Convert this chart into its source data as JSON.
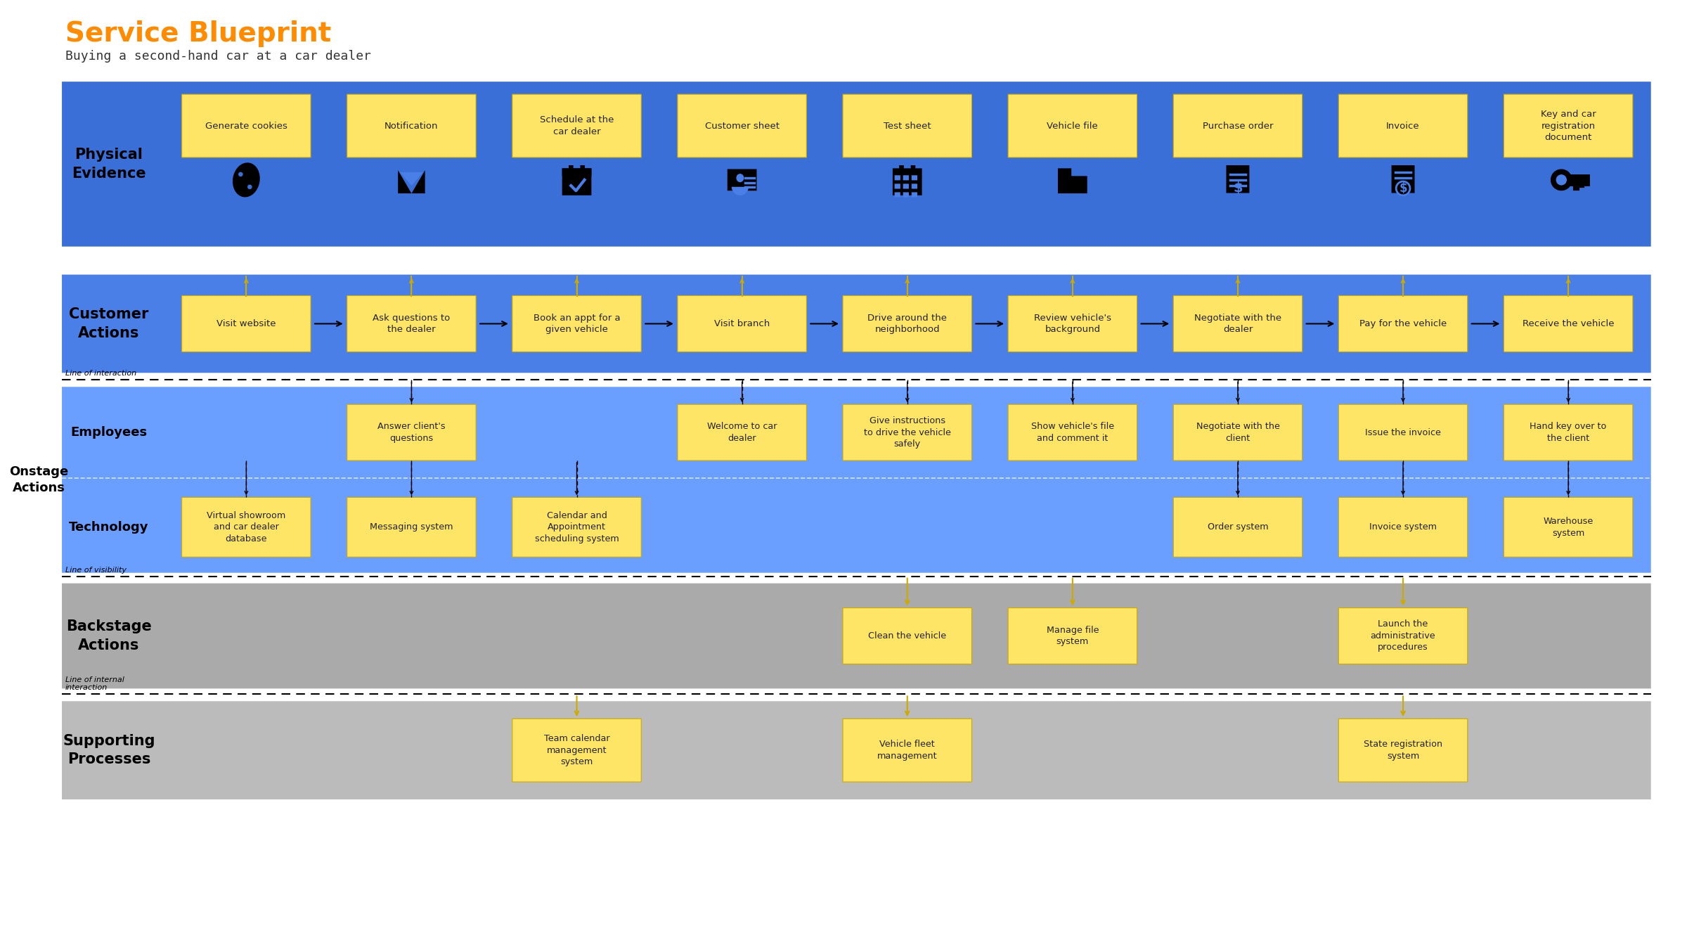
{
  "title": "Service Blueprint",
  "subtitle": "Buying a second-hand car at a car dealer",
  "title_color": "#FF8C00",
  "subtitle_color": "#333333",
  "bg_color": "#FFFFFF",
  "yellow": "#FFE566",
  "yellow_edge": "#CCAA00",
  "blue1": "#3A6FD8",
  "blue2": "#4A7FE8",
  "blue3": "#6B9FFF",
  "gray1": "#AAAAAA",
  "gray2": "#BBBBBB",
  "physical_evidence_cards": [
    "Generate cookies",
    "Notification",
    "Schedule at the\ncar dealer",
    "Customer sheet",
    "Test sheet",
    "Vehicle file",
    "Purchase order",
    "Invoice",
    "Key and car\nregistration\ndocument"
  ],
  "customer_actions_cards": [
    "Visit website",
    "Ask questions to\nthe dealer",
    "Book an appt for a\ngiven vehicle",
    "Visit branch",
    "Drive around the\nneighborhood",
    "Review vehicle's\nbackground",
    "Negotiate with the\ndealer",
    "Pay for the vehicle",
    "Receive the vehicle"
  ],
  "employees_cards": [
    {
      "text": "Answer client's\nquestions",
      "col": 1
    },
    {
      "text": "Welcome to car\ndealer",
      "col": 3
    },
    {
      "text": "Give instructions\nto drive the vehicle\nsafely",
      "col": 4
    },
    {
      "text": "Show vehicle's file\nand comment it",
      "col": 5
    },
    {
      "text": "Negotiate with the\nclient",
      "col": 6
    },
    {
      "text": "Issue the invoice",
      "col": 7
    },
    {
      "text": "Hand key over to\nthe client",
      "col": 8
    }
  ],
  "technology_cards": [
    {
      "text": "Virtual showroom\nand car dealer\ndatabase",
      "col": 0
    },
    {
      "text": "Messaging system",
      "col": 1
    },
    {
      "text": "Calendar and\nAppointment\nscheduling system",
      "col": 2
    },
    {
      "text": "Order system",
      "col": 6
    },
    {
      "text": "Invoice system",
      "col": 7
    },
    {
      "text": "Warehouse\nsystem",
      "col": 8
    }
  ],
  "backstage_cards": [
    {
      "text": "Clean the vehicle",
      "col": 4
    },
    {
      "text": "Manage file\nsystem",
      "col": 5
    },
    {
      "text": "Launch the\nadministrative\nprocedures",
      "col": 7
    }
  ],
  "supporting_cards": [
    {
      "text": "Team calendar\nmanagement\nsystem",
      "col": 2
    },
    {
      "text": "Vehicle fleet\nmanagement",
      "col": 4
    },
    {
      "text": "State registration\nsystem",
      "col": 7
    }
  ]
}
